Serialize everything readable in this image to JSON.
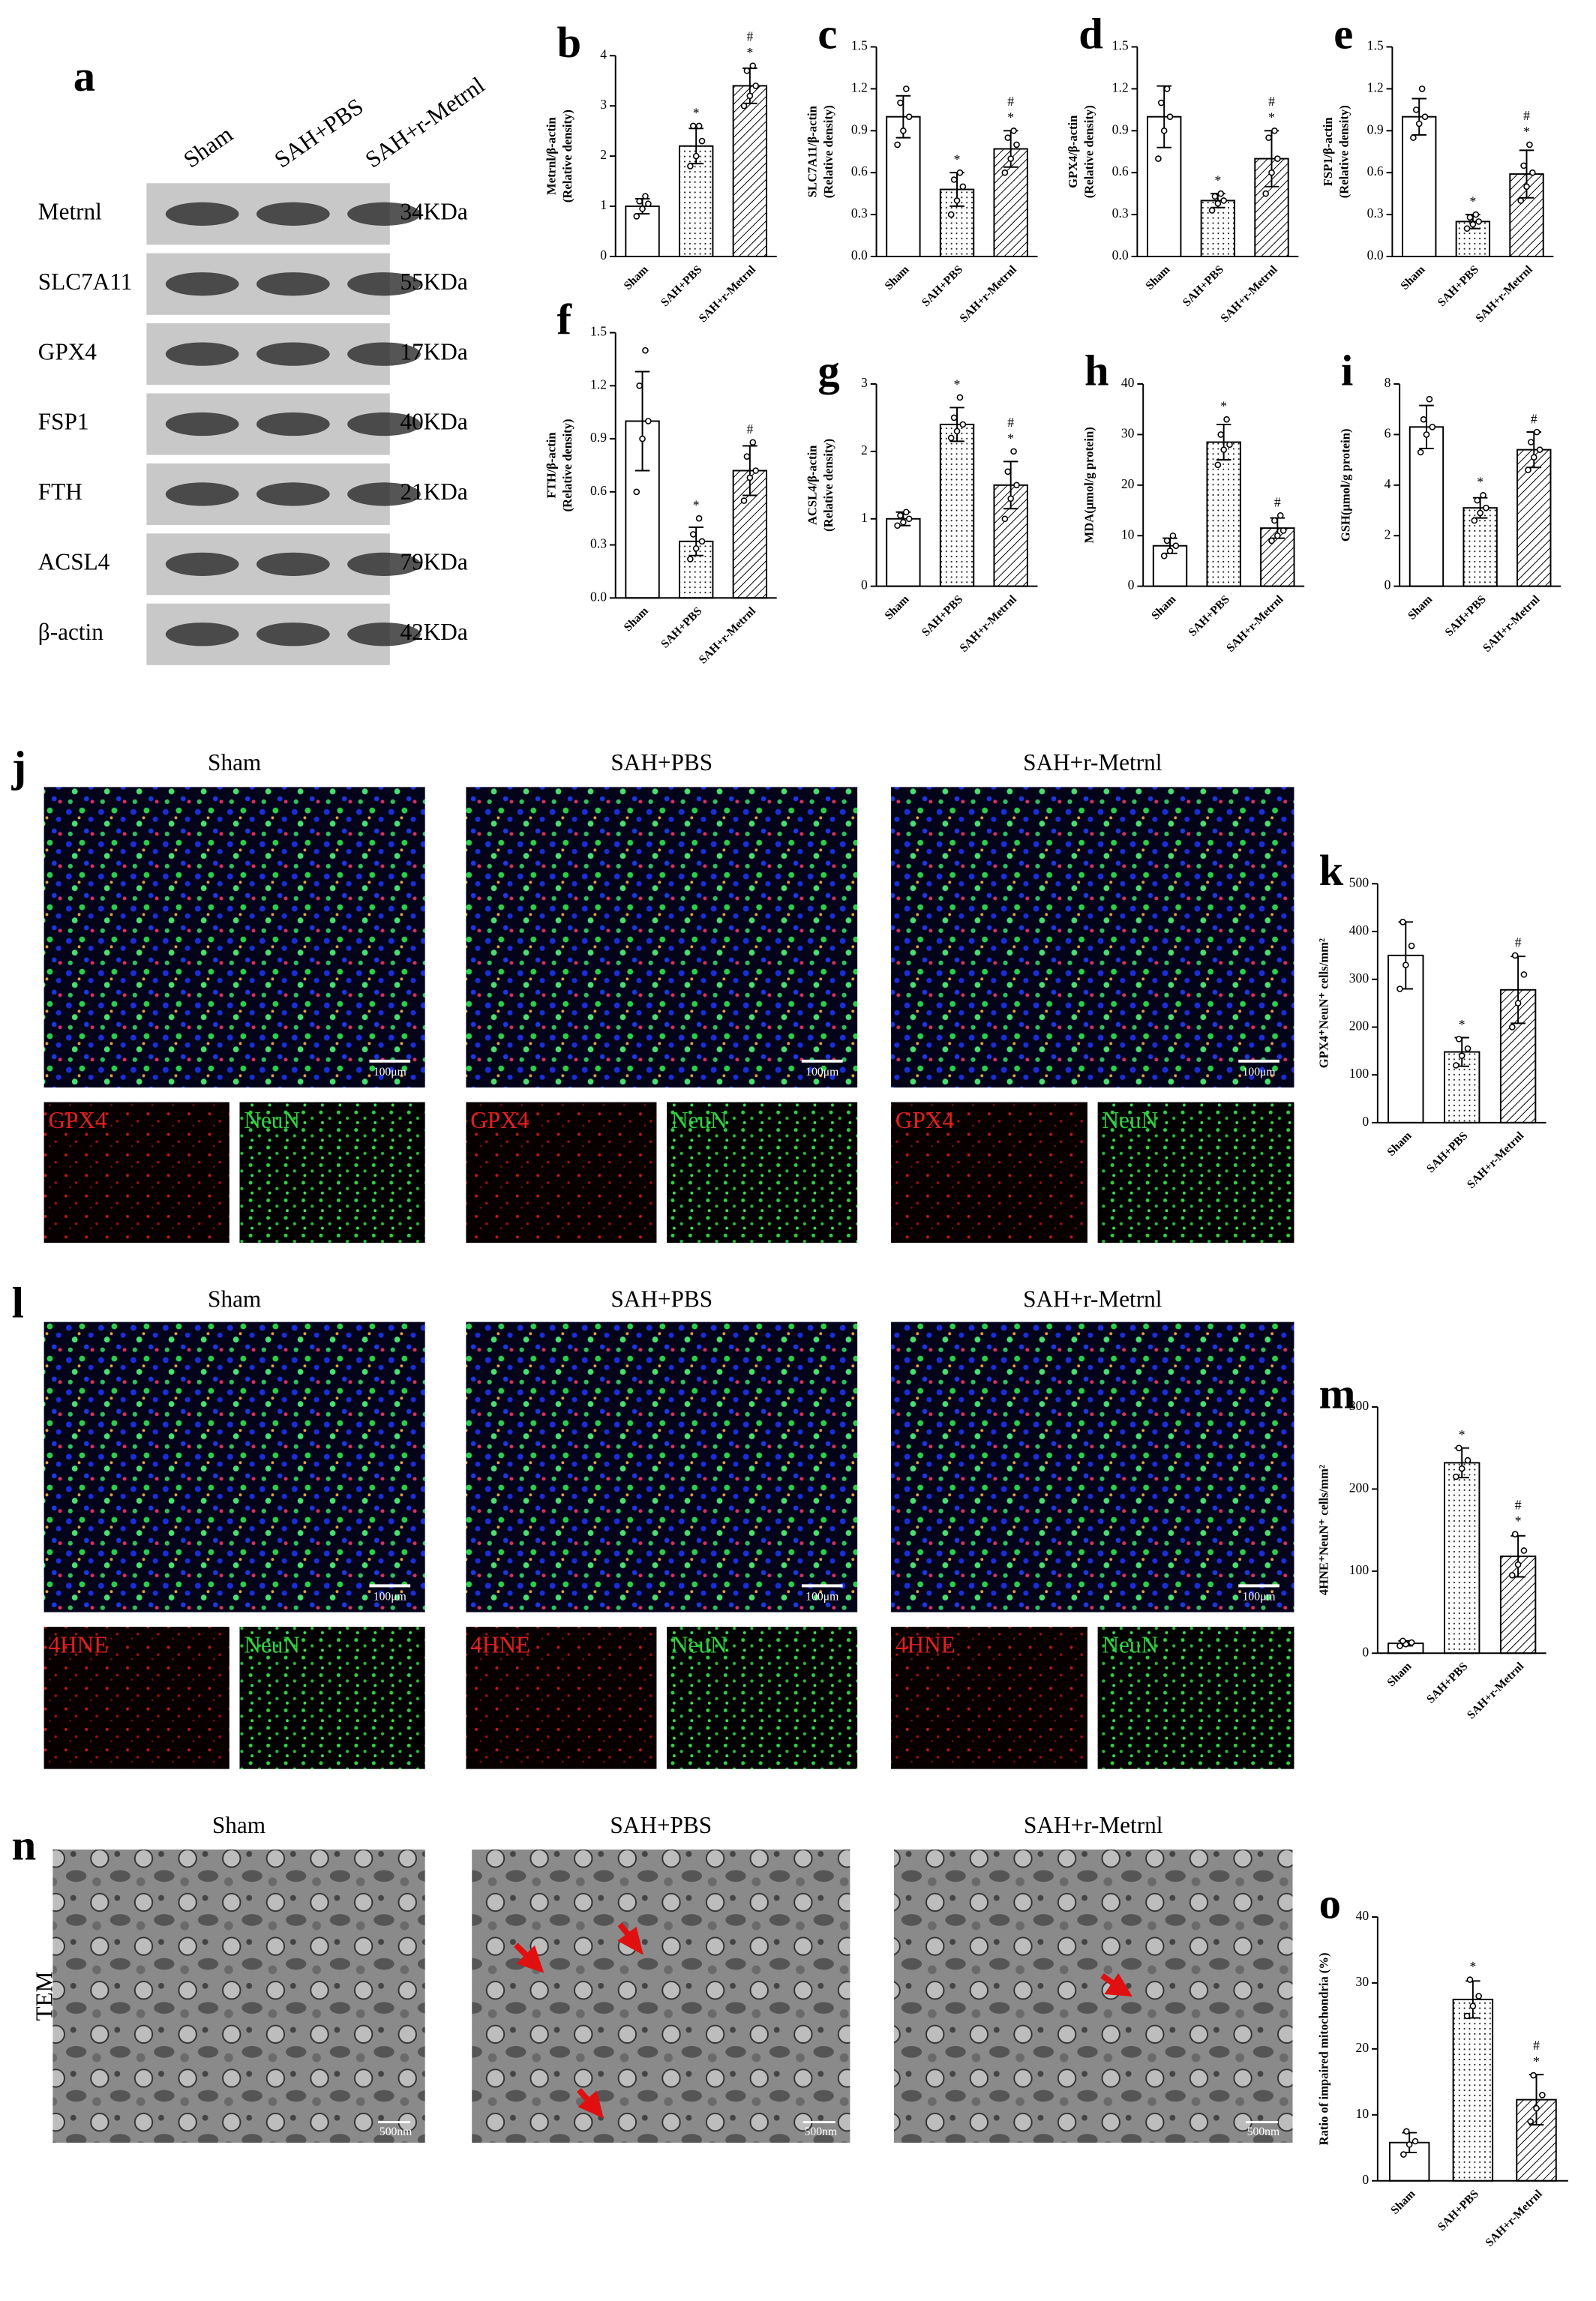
{
  "blot": {
    "label": "a",
    "groups": [
      "Sham",
      "SAH+PBS",
      "SAH+r-Metrnl"
    ],
    "rows": [
      {
        "name": "Metrnl",
        "size": "34KDa"
      },
      {
        "name": "SLC7A11",
        "size": "55KDa"
      },
      {
        "name": "GPX4",
        "size": "17KDa"
      },
      {
        "name": "FSP1",
        "size": "40KDa"
      },
      {
        "name": "FTH",
        "size": "21KDa"
      },
      {
        "name": "ACSL4",
        "size": "79KDa"
      },
      {
        "name": "β-actin",
        "size": "42KDa"
      }
    ]
  },
  "chart_data": [
    {
      "type": "bar",
      "label": "b",
      "ylabel": [
        "Metrnl/β-actin",
        "(Relative density)"
      ],
      "categories": [
        "Sham",
        "SAH+PBS",
        "SAH+r-Metrnl"
      ],
      "fills": [
        "white",
        "dots",
        "hatch"
      ],
      "values": [
        1.0,
        2.2,
        3.4
      ],
      "errors": [
        0.15,
        0.35,
        0.35
      ],
      "points": [
        [
          0.8,
          0.95,
          1.05,
          1.1,
          1.2
        ],
        [
          1.8,
          2.0,
          2.3,
          2.6,
          2.6
        ],
        [
          3.0,
          3.2,
          3.4,
          3.7,
          3.8
        ]
      ],
      "annotations": [
        [],
        [
          "*"
        ],
        [
          "#",
          "*"
        ]
      ],
      "ylim": [
        0,
        4
      ],
      "yticks": [
        0,
        1,
        2,
        3,
        4
      ]
    },
    {
      "type": "bar",
      "label": "c",
      "ylabel": [
        "SLC7A11/β-actin",
        "(Relative density)"
      ],
      "categories": [
        "Sham",
        "SAH+PBS",
        "SAH+r-Metrnl"
      ],
      "fills": [
        "white",
        "dots",
        "hatch"
      ],
      "values": [
        1.0,
        0.48,
        0.77
      ],
      "errors": [
        0.15,
        0.12,
        0.13
      ],
      "points": [
        [
          0.8,
          0.9,
          1.0,
          1.1,
          1.2
        ],
        [
          0.3,
          0.4,
          0.5,
          0.55,
          0.6
        ],
        [
          0.6,
          0.7,
          0.8,
          0.85,
          0.9
        ]
      ],
      "annotations": [
        [],
        [
          "*"
        ],
        [
          "#",
          "*"
        ]
      ],
      "ylim": [
        0,
        1.5
      ],
      "yticks": [
        {
          "value": 0,
          "label": "0.0"
        },
        0.3,
        0.6,
        0.9,
        1.2,
        1.5
      ]
    },
    {
      "type": "bar",
      "label": "d",
      "ylabel": [
        "GPX4/β-actin",
        "(Relative density)"
      ],
      "categories": [
        "Sham",
        "SAH+PBS",
        "SAH+r-Metrnl"
      ],
      "fills": [
        "white",
        "dots",
        "hatch"
      ],
      "values": [
        1.0,
        0.4,
        0.7
      ],
      "errors": [
        0.22,
        0.05,
        0.2
      ],
      "points": [
        [
          0.7,
          0.9,
          1.0,
          1.1,
          1.2
        ],
        [
          0.33,
          0.38,
          0.4,
          0.43,
          0.45
        ],
        [
          0.45,
          0.6,
          0.7,
          0.85,
          0.9
        ]
      ],
      "annotations": [
        [],
        [
          "*"
        ],
        [
          "#",
          "*"
        ]
      ],
      "ylim": [
        0,
        1.5
      ],
      "yticks": [
        {
          "value": 0,
          "label": "0.0"
        },
        0.3,
        0.6,
        0.9,
        1.2,
        1.5
      ]
    },
    {
      "type": "bar",
      "label": "e",
      "ylabel": [
        "FSP1/β-actin",
        "(Relative density)"
      ],
      "categories": [
        "Sham",
        "SAH+PBS",
        "SAH+r-Metrnl"
      ],
      "fills": [
        "white",
        "dots",
        "hatch"
      ],
      "values": [
        1.0,
        0.25,
        0.59
      ],
      "errors": [
        0.13,
        0.05,
        0.17
      ],
      "points": [
        [
          0.85,
          0.95,
          1.0,
          1.05,
          1.2
        ],
        [
          0.2,
          0.23,
          0.25,
          0.28,
          0.3
        ],
        [
          0.4,
          0.5,
          0.6,
          0.65,
          0.8
        ]
      ],
      "annotations": [
        [],
        [
          "*"
        ],
        [
          "#",
          "*"
        ]
      ],
      "ylim": [
        0,
        1.5
      ],
      "yticks": [
        {
          "value": 0,
          "label": "0.0"
        },
        0.3,
        0.6,
        0.9,
        1.2,
        1.5
      ]
    },
    {
      "type": "bar",
      "label": "f",
      "ylabel": [
        "FTH/β-actin",
        "(Relative density)"
      ],
      "categories": [
        "Sham",
        "SAH+PBS",
        "SAH+r-Metrnl"
      ],
      "fills": [
        "white",
        "dots",
        "hatch"
      ],
      "values": [
        1.0,
        0.32,
        0.72
      ],
      "errors": [
        0.28,
        0.08,
        0.14
      ],
      "points": [
        [
          0.6,
          0.9,
          1.0,
          1.2,
          1.4
        ],
        [
          0.22,
          0.28,
          0.32,
          0.36,
          0.45
        ],
        [
          0.55,
          0.68,
          0.72,
          0.8,
          0.88
        ]
      ],
      "annotations": [
        [],
        [
          "*"
        ],
        [
          "#"
        ]
      ],
      "ylim": [
        0,
        1.5
      ],
      "yticks": [
        {
          "value": 0,
          "label": "0.0"
        },
        0.3,
        0.6,
        0.9,
        1.2,
        1.5
      ]
    },
    {
      "type": "bar",
      "label": "g",
      "ylabel": [
        "ACSL4/β-actin",
        "(Relative density)"
      ],
      "categories": [
        "Sham",
        "SAH+PBS",
        "SAH+r-Metrnl"
      ],
      "fills": [
        "white",
        "dots",
        "hatch"
      ],
      "values": [
        1.0,
        2.4,
        1.5
      ],
      "errors": [
        0.1,
        0.25,
        0.35
      ],
      "points": [
        [
          0.9,
          0.95,
          1.0,
          1.05,
          1.1
        ],
        [
          2.2,
          2.3,
          2.4,
          2.5,
          2.8
        ],
        [
          1.0,
          1.3,
          1.5,
          1.7,
          2.0
        ]
      ],
      "annotations": [
        [],
        [
          "*"
        ],
        [
          "#",
          "*"
        ]
      ],
      "ylim": [
        0,
        3
      ],
      "yticks": [
        0,
        1,
        2,
        3
      ]
    },
    {
      "type": "bar",
      "label": "h",
      "ylabel": [
        "MDA(μmol/g protein)"
      ],
      "categories": [
        "Sham",
        "SAH+PBS",
        "SAH+r-Metrnl"
      ],
      "fills": [
        "white",
        "dots",
        "hatch"
      ],
      "values": [
        8,
        28.5,
        11.5
      ],
      "errors": [
        1.5,
        3.5,
        2
      ],
      "points": [
        [
          6,
          7,
          8,
          9,
          10
        ],
        [
          24,
          27,
          28,
          30,
          33
        ],
        [
          9,
          10,
          11,
          13,
          14
        ]
      ],
      "annotations": [
        [],
        [
          "*"
        ],
        [
          "#"
        ]
      ],
      "ylim": [
        0,
        40
      ],
      "yticks": [
        0,
        10,
        20,
        30,
        40
      ]
    },
    {
      "type": "bar",
      "label": "i",
      "ylabel": [
        "GSH(μmol/g protein)"
      ],
      "categories": [
        "Sham",
        "SAH+PBS",
        "SAH+r-Metrnl"
      ],
      "fills": [
        "white",
        "dots",
        "hatch"
      ],
      "values": [
        6.3,
        3.1,
        5.4
      ],
      "errors": [
        0.85,
        0.4,
        0.7
      ],
      "points": [
        [
          5.3,
          6.0,
          6.3,
          6.6,
          7.4
        ],
        [
          2.6,
          2.9,
          3.1,
          3.4,
          3.6
        ],
        [
          4.6,
          5.1,
          5.4,
          5.7,
          6.1
        ]
      ],
      "annotations": [
        [],
        [
          "*"
        ],
        [
          "#"
        ]
      ],
      "ylim": [
        0,
        8
      ],
      "yticks": [
        0,
        2,
        4,
        6,
        8
      ]
    },
    {
      "type": "bar",
      "label": "k",
      "ylabel": [
        "GPX4⁺NeuN⁺ cells/mm²"
      ],
      "categories": [
        "Sham",
        "SAH+PBS",
        "SAH+r-Metrnl"
      ],
      "fills": [
        "white",
        "dots",
        "hatch"
      ],
      "values": [
        350,
        148,
        278
      ],
      "errors": [
        70,
        30,
        70
      ],
      "points": [
        [
          280,
          330,
          370,
          420
        ],
        [
          120,
          140,
          155,
          175
        ],
        [
          200,
          250,
          310,
          350
        ]
      ],
      "annotations": [
        [],
        [
          "*"
        ],
        [
          "#"
        ]
      ],
      "ylim": [
        0,
        500
      ],
      "yticks": [
        0,
        100,
        200,
        300,
        400,
        500
      ]
    },
    {
      "type": "bar",
      "label": "m",
      "ylabel": [
        "4HNE⁺NeuN⁺ cells/mm²"
      ],
      "categories": [
        "Sham",
        "SAH+PBS",
        "SAH+r-Metrnl"
      ],
      "fills": [
        "white",
        "dots",
        "hatch"
      ],
      "values": [
        12,
        232,
        118
      ],
      "errors": [
        3,
        18,
        25
      ],
      "points": [
        [
          9,
          11,
          13,
          15
        ],
        [
          215,
          225,
          235,
          250
        ],
        [
          95,
          108,
          125,
          145
        ]
      ],
      "annotations": [
        [],
        [
          "*"
        ],
        [
          "#",
          "*"
        ]
      ],
      "ylim": [
        0,
        300
      ],
      "yticks": [
        0,
        100,
        200,
        300
      ]
    },
    {
      "type": "bar",
      "label": "o",
      "ylabel": [
        "Ratio of impaired mitochondria (%)"
      ],
      "categories": [
        "Sham",
        "SAH+PBS",
        "SAH+r-Metrnl"
      ],
      "fills": [
        "white",
        "dots",
        "hatch"
      ],
      "values": [
        5.8,
        27.5,
        12.3
      ],
      "errors": [
        1.5,
        2.8,
        3.8
      ],
      "points": [
        [
          4,
          5.5,
          6,
          7.5
        ],
        [
          25,
          26.5,
          28,
          30.5
        ],
        [
          9,
          11,
          13,
          16
        ]
      ],
      "annotations": [
        [],
        [
          "*"
        ],
        [
          "#",
          "*"
        ]
      ],
      "ylim": [
        0,
        40
      ],
      "yticks": [
        0,
        10,
        20,
        30,
        40
      ]
    }
  ],
  "panels": [
    {
      "label": "j",
      "groups": [
        "Sham",
        "SAH+PBS",
        "SAH+r-Metrnl"
      ],
      "channels": [
        "GPX4",
        "NeuN"
      ],
      "scale": "100μm"
    },
    {
      "label": "l",
      "groups": [
        "Sham",
        "SAH+PBS",
        "SAH+r-Metrnl"
      ],
      "channels": [
        "4HNE",
        "NeuN"
      ],
      "scale": "100μm"
    },
    {
      "label": "n",
      "row_label": "TEM",
      "groups": [
        "Sham",
        "SAH+PBS",
        "SAH+r-Metrnl"
      ],
      "scale": "500nm"
    }
  ]
}
